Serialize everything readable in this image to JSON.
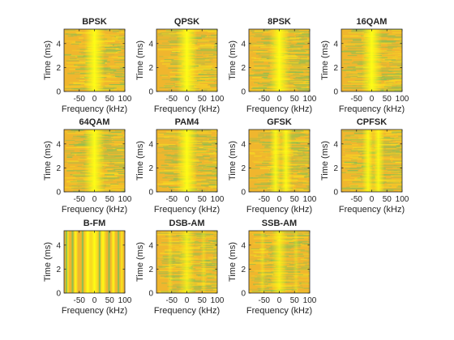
{
  "chart_data": [
    {
      "type": "heatmap",
      "title": "BPSK",
      "pattern": "center-band",
      "xlabel": "Frequency (kHz)",
      "ylabel": "Time (ms)",
      "xlim": [
        -100,
        100
      ],
      "ylim": [
        0,
        5.2
      ],
      "xticks": [
        -50,
        0,
        50,
        100
      ],
      "yticks": [
        0,
        2,
        4
      ],
      "colors": {
        "base": "#f0b62e",
        "peak": "#ffff14",
        "low": "#73c15a"
      }
    },
    {
      "type": "heatmap",
      "title": "QPSK",
      "pattern": "center-band",
      "xlabel": "Frequency (kHz)",
      "ylabel": "Time (ms)",
      "xlim": [
        -100,
        100
      ],
      "ylim": [
        0,
        5.2
      ],
      "xticks": [
        -50,
        0,
        50,
        100
      ],
      "yticks": [
        0,
        2,
        4
      ],
      "colors": {
        "base": "#f0b62e",
        "peak": "#ffff14",
        "low": "#73c15a"
      }
    },
    {
      "type": "heatmap",
      "title": "8PSK",
      "pattern": "center-band",
      "xlabel": "Frequency (kHz)",
      "ylabel": "Time (ms)",
      "xlim": [
        -100,
        100
      ],
      "ylim": [
        0,
        5.2
      ],
      "xticks": [
        -50,
        0,
        50,
        100
      ],
      "yticks": [
        0,
        2,
        4
      ],
      "colors": {
        "base": "#f0b62e",
        "peak": "#ffff14",
        "low": "#73c15a"
      }
    },
    {
      "type": "heatmap",
      "title": "16QAM",
      "pattern": "center-band",
      "xlabel": "Frequency (kHz)",
      "ylabel": "Time (ms)",
      "xlim": [
        -100,
        100
      ],
      "ylim": [
        0,
        5.2
      ],
      "xticks": [
        -50,
        0,
        50,
        100
      ],
      "yticks": [
        0,
        2,
        4
      ],
      "colors": {
        "base": "#f0b62e",
        "peak": "#ffff14",
        "low": "#73c15a"
      }
    },
    {
      "type": "heatmap",
      "title": "64QAM",
      "pattern": "center-band",
      "xlabel": "Frequency (kHz)",
      "ylabel": "Time (ms)",
      "xlim": [
        -100,
        100
      ],
      "ylim": [
        0,
        5.2
      ],
      "xticks": [
        -50,
        0,
        50,
        100
      ],
      "yticks": [
        0,
        2,
        4
      ],
      "colors": {
        "base": "#f0b62e",
        "peak": "#ffff14",
        "low": "#73c15a"
      }
    },
    {
      "type": "heatmap",
      "title": "PAM4",
      "pattern": "center-band",
      "xlabel": "Frequency (kHz)",
      "ylabel": "Time (ms)",
      "xlim": [
        -100,
        100
      ],
      "ylim": [
        0,
        5.2
      ],
      "xticks": [
        -50,
        0,
        50,
        100
      ],
      "yticks": [
        0,
        2,
        4
      ],
      "colors": {
        "base": "#f0b62e",
        "peak": "#ffff14",
        "low": "#73c15a"
      }
    },
    {
      "type": "heatmap",
      "title": "GFSK",
      "pattern": "fsk",
      "xlabel": "Frequency (kHz)",
      "ylabel": "Time (ms)",
      "xlim": [
        -100,
        100
      ],
      "ylim": [
        0,
        5.2
      ],
      "xticks": [
        -50,
        0,
        50,
        100
      ],
      "yticks": [
        0,
        2,
        4
      ],
      "colors": {
        "base": "#f0b62e",
        "peak": "#ffff14",
        "low": "#73c15a"
      }
    },
    {
      "type": "heatmap",
      "title": "CPFSK",
      "pattern": "fsk",
      "xlabel": "Frequency (kHz)",
      "ylabel": "Time (ms)",
      "xlim": [
        -100,
        100
      ],
      "ylim": [
        0,
        5.2
      ],
      "xticks": [
        -50,
        0,
        50,
        100
      ],
      "yticks": [
        0,
        2,
        4
      ],
      "colors": {
        "base": "#f0b62e",
        "peak": "#ffff14",
        "low": "#73c15a"
      }
    },
    {
      "type": "heatmap",
      "title": "B-FM",
      "pattern": "fm-stripes",
      "xlabel": "Frequency (kHz)",
      "ylabel": "Time (ms)",
      "xlim": [
        -100,
        100
      ],
      "ylim": [
        0,
        5.2
      ],
      "xticks": [
        -50,
        0,
        50,
        100
      ],
      "yticks": [
        0,
        2,
        4
      ],
      "colors": {
        "base": "#f0b62e",
        "peak": "#ffff14",
        "low": "#73c15a"
      }
    },
    {
      "type": "heatmap",
      "title": "DSB-AM",
      "pattern": "am",
      "xlabel": "Frequency (kHz)",
      "ylabel": "Time (ms)",
      "xlim": [
        -100,
        100
      ],
      "ylim": [
        0,
        5.2
      ],
      "xticks": [
        -50,
        0,
        50,
        100
      ],
      "yticks": [
        0,
        2,
        4
      ],
      "colors": {
        "base": "#f0b62e",
        "peak": "#ffff14",
        "low": "#73c15a"
      }
    },
    {
      "type": "heatmap",
      "title": "SSB-AM",
      "pattern": "am",
      "xlabel": "Frequency (kHz)",
      "ylabel": "Time (ms)",
      "xlim": [
        -100,
        100
      ],
      "ylim": [
        0,
        5.2
      ],
      "xticks": [
        -50,
        0,
        50,
        100
      ],
      "yticks": [
        0,
        2,
        4
      ],
      "colors": {
        "base": "#f0b62e",
        "peak": "#ffff14",
        "low": "#73c15a"
      }
    }
  ]
}
